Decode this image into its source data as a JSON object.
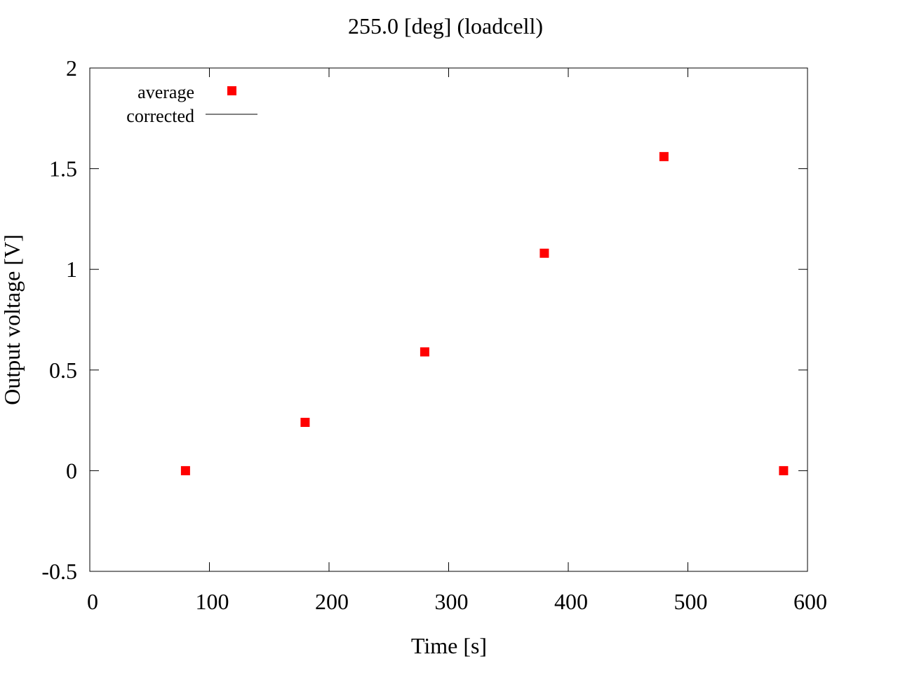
{
  "chart_data": {
    "type": "scatter",
    "title": "255.0 [deg] (loadcell)",
    "xlabel": "Time [s]",
    "ylabel": "Output voltage [V]",
    "xlim": [
      0,
      600
    ],
    "ylim": [
      -0.5,
      2
    ],
    "xticks": [
      0,
      100,
      200,
      300,
      400,
      500,
      600
    ],
    "xtick_labels": [
      "0",
      "100",
      "200",
      "300",
      "400",
      "500",
      "600"
    ],
    "yticks": [
      -0.5,
      0,
      0.5,
      1,
      1.5,
      2
    ],
    "ytick_labels": [
      "-0.5",
      "0",
      "0.5",
      "1",
      "1.5",
      "2"
    ],
    "grid": false,
    "legend_position": "top-left",
    "series": [
      {
        "name": "average",
        "style": "markers",
        "marker": "square",
        "color": "#ff0000",
        "x": [
          80,
          180,
          280,
          380,
          480,
          580
        ],
        "y": [
          0.0,
          0.24,
          0.59,
          1.08,
          1.56,
          0.0
        ]
      },
      {
        "name": "corrected",
        "style": "line",
        "color": "#000000",
        "x": [],
        "y": []
      }
    ]
  }
}
